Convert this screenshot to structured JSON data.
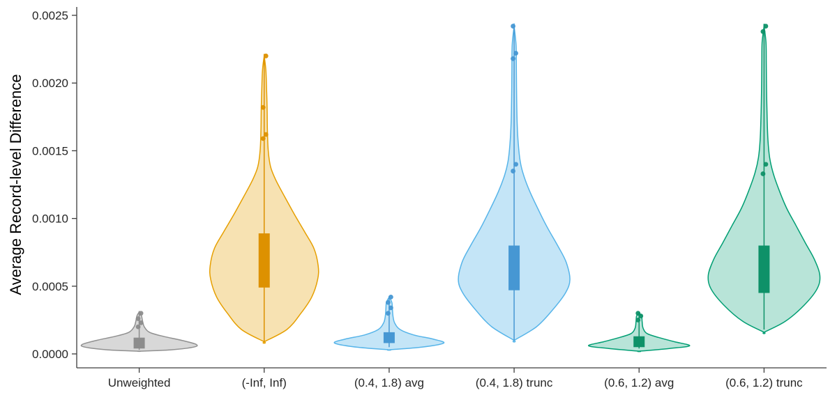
{
  "figure": {
    "background": "#ffffff",
    "axis_color": "#3c3c3c",
    "tick_text_color": "#262626",
    "axis_label_color": "#000000",
    "tick_font_px": 17,
    "axis_label_font_px": 22
  },
  "chart_data": {
    "type": "violin",
    "title": "",
    "xlabel": "",
    "ylabel": "Average Record-level Difference",
    "ylim": [
      0,
      0.0025
    ],
    "yticks": [
      0,
      0.0005,
      0.001,
      0.0015,
      0.002,
      0.0025
    ],
    "ytick_labels": [
      "0.0000",
      "0.0005",
      "0.0010",
      "0.0015",
      "0.0020",
      "0.0025"
    ],
    "grid": false,
    "legend": "none",
    "categories": [
      "Unweighted",
      "(-Inf, Inf)",
      "(0.4, 1.8) avg",
      "(0.4, 1.8) trunc",
      "(0.6, 1.2) avg",
      "(0.6, 1.2) trunc"
    ],
    "series": [
      {
        "name": "Unweighted",
        "stroke": "#909090",
        "fill": "#999999",
        "fill_opacity": 0.38,
        "box_color": "#8c8c8c",
        "width": 0.97,
        "density": [
          [
            2e-05,
            0.0
          ],
          [
            3e-05,
            0.55
          ],
          [
            5e-05,
            0.95
          ],
          [
            7e-05,
            1.0
          ],
          [
            0.0001,
            0.75
          ],
          [
            0.00013,
            0.42
          ],
          [
            0.00016,
            0.18
          ],
          [
            0.0002,
            0.09
          ],
          [
            0.00024,
            0.06
          ],
          [
            0.00028,
            0.04
          ],
          [
            0.00031,
            0.0
          ]
        ],
        "box": {
          "q1": 4e-05,
          "q3": 0.00012
        },
        "whiskers": [
          3e-05,
          0.0003
        ],
        "outliers": [
          0.0002,
          0.00023,
          0.00026,
          0.0003
        ]
      },
      {
        "name": "(-Inf, Inf)",
        "stroke": "#E69F00",
        "fill": "#E69F00",
        "fill_opacity": 0.3,
        "box_color": "#DD9100",
        "width": 0.92,
        "density": [
          [
            9e-05,
            0.0
          ],
          [
            0.00018,
            0.42
          ],
          [
            0.0003,
            0.68
          ],
          [
            0.00042,
            0.88
          ],
          [
            0.00055,
            0.99
          ],
          [
            0.00065,
            1.0
          ],
          [
            0.00078,
            0.92
          ],
          [
            0.0009,
            0.75
          ],
          [
            0.00103,
            0.56
          ],
          [
            0.00116,
            0.38
          ],
          [
            0.00128,
            0.22
          ],
          [
            0.00138,
            0.12
          ],
          [
            0.0015,
            0.075
          ],
          [
            0.00165,
            0.06
          ],
          [
            0.0018,
            0.055
          ],
          [
            0.00195,
            0.045
          ],
          [
            0.0021,
            0.03
          ],
          [
            0.0022,
            0.0
          ]
        ],
        "box": {
          "q1": 0.00049,
          "q3": 0.00089
        },
        "whiskers": [
          9e-05,
          0.0022
        ],
        "outliers": [
          0.00159,
          0.00162,
          0.00182,
          0.0022
        ]
      },
      {
        "name": "(0.4, 1.8) avg",
        "stroke": "#56B4E9",
        "fill": "#56B4E9",
        "fill_opacity": 0.35,
        "box_color": "#4697D3",
        "width": 0.93,
        "density": [
          [
            3e-05,
            0.0
          ],
          [
            5e-05,
            0.6
          ],
          [
            8e-05,
            1.0
          ],
          [
            0.00011,
            0.8
          ],
          [
            0.00014,
            0.45
          ],
          [
            0.00018,
            0.2
          ],
          [
            0.00023,
            0.1
          ],
          [
            0.00028,
            0.07
          ],
          [
            0.00033,
            0.06
          ],
          [
            0.00038,
            0.05
          ],
          [
            0.00042,
            0.0
          ]
        ],
        "box": {
          "q1": 8e-05,
          "q3": 0.00016
        },
        "whiskers": [
          5e-05,
          0.00042
        ],
        "outliers": [
          0.0003,
          0.00034,
          0.00038,
          0.00042
        ]
      },
      {
        "name": "(0.4, 1.8) trunc",
        "stroke": "#56B4E9",
        "fill": "#56B4E9",
        "fill_opacity": 0.35,
        "box_color": "#4697D3",
        "width": 0.95,
        "density": [
          [
            0.0001,
            0.0
          ],
          [
            0.0002,
            0.4
          ],
          [
            0.00032,
            0.68
          ],
          [
            0.00045,
            0.92
          ],
          [
            0.00055,
            1.0
          ],
          [
            0.00068,
            0.93
          ],
          [
            0.0008,
            0.78
          ],
          [
            0.00093,
            0.6
          ],
          [
            0.00106,
            0.44
          ],
          [
            0.0012,
            0.28
          ],
          [
            0.00132,
            0.17
          ],
          [
            0.00142,
            0.11
          ],
          [
            0.00155,
            0.075
          ],
          [
            0.0017,
            0.055
          ],
          [
            0.0019,
            0.045
          ],
          [
            0.0021,
            0.04
          ],
          [
            0.00228,
            0.035
          ],
          [
            0.00242,
            0.0
          ]
        ],
        "box": {
          "q1": 0.00047,
          "q3": 0.0008
        },
        "whiskers": [
          0.0001,
          0.00242
        ],
        "outliers": [
          0.00135,
          0.0014,
          0.00218,
          0.00222,
          0.00242
        ]
      },
      {
        "name": "(0.6, 1.2) avg",
        "stroke": "#009E73",
        "fill": "#009E73",
        "fill_opacity": 0.28,
        "box_color": "#0E9168",
        "width": 0.86,
        "density": [
          [
            2e-05,
            0.0
          ],
          [
            4e-05,
            0.6
          ],
          [
            6e-05,
            1.0
          ],
          [
            9e-05,
            0.7
          ],
          [
            0.00012,
            0.4
          ],
          [
            0.00015,
            0.16
          ],
          [
            0.00019,
            0.08
          ],
          [
            0.00024,
            0.06
          ],
          [
            0.00028,
            0.05
          ],
          [
            0.0003,
            0.0
          ]
        ],
        "box": {
          "q1": 5e-05,
          "q3": 0.00013
        },
        "whiskers": [
          4e-05,
          0.0003
        ],
        "outliers": [
          0.00025,
          0.00028,
          0.0003
        ]
      },
      {
        "name": "(0.6, 1.2) trunc",
        "stroke": "#009E73",
        "fill": "#009E73",
        "fill_opacity": 0.28,
        "box_color": "#0E9168",
        "width": 0.95,
        "density": [
          [
            0.00016,
            0.0
          ],
          [
            0.00024,
            0.38
          ],
          [
            0.00036,
            0.72
          ],
          [
            0.00048,
            0.95
          ],
          [
            0.00058,
            1.0
          ],
          [
            0.0007,
            0.9
          ],
          [
            0.00082,
            0.74
          ],
          [
            0.00095,
            0.57
          ],
          [
            0.00108,
            0.4
          ],
          [
            0.00122,
            0.26
          ],
          [
            0.00134,
            0.16
          ],
          [
            0.00145,
            0.1
          ],
          [
            0.00158,
            0.07
          ],
          [
            0.00175,
            0.055
          ],
          [
            0.00195,
            0.045
          ],
          [
            0.00215,
            0.04
          ],
          [
            0.0023,
            0.035
          ],
          [
            0.00242,
            0.0
          ]
        ],
        "box": {
          "q1": 0.00045,
          "q3": 0.0008
        },
        "whiskers": [
          0.00018,
          0.00242
        ],
        "outliers": [
          0.00133,
          0.0014,
          0.00238,
          0.00242
        ]
      }
    ]
  }
}
